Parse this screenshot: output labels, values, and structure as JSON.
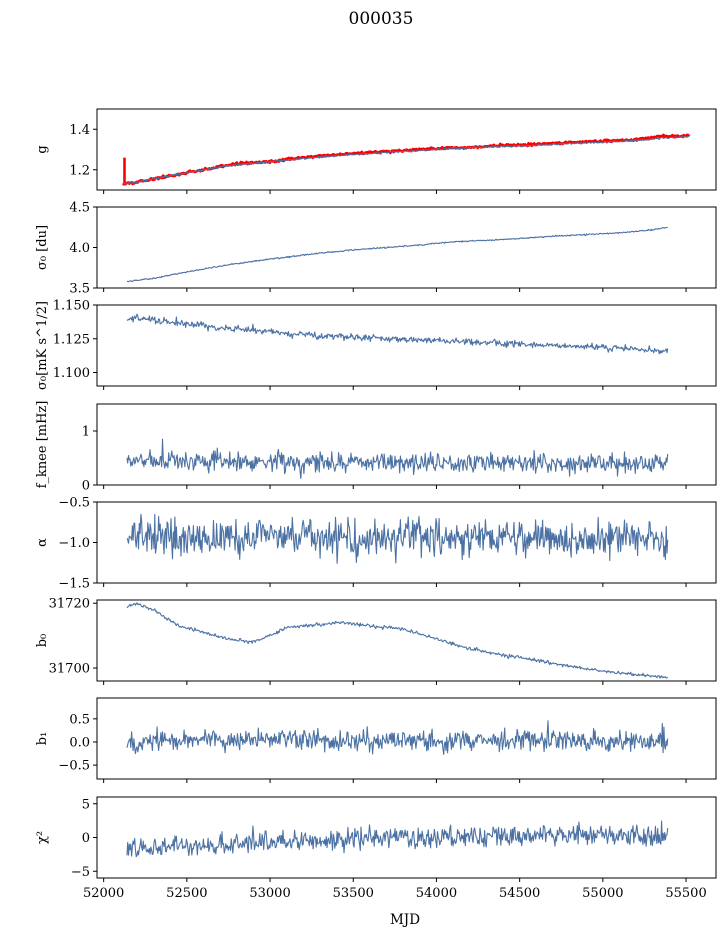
{
  "figure": {
    "title": "000035",
    "xlabel": "MJD",
    "xlim": [
      51960,
      55680
    ],
    "xticks": [
      52000,
      52500,
      53000,
      53500,
      54000,
      54500,
      55000,
      55500
    ],
    "line_color": "#4c72a4",
    "fit_color": "#ff0000"
  },
  "chart_data": [
    {
      "id": "g",
      "type": "line",
      "ylabel": "g",
      "ylim": [
        1.1,
        1.5
      ],
      "yticks": [
        {
          "v": 1.2,
          "t": "1.2"
        },
        {
          "v": 1.4,
          "t": "1.4"
        }
      ],
      "x_range": [
        52120,
        55520
      ],
      "series": [
        {
          "kind": "fit",
          "noise": 0.003,
          "spike": {
            "x": 52125,
            "from": 1.13,
            "to": 1.26
          },
          "points": [
            [
              52120,
              1.13
            ],
            [
              52200,
              1.14
            ],
            [
              52400,
              1.17
            ],
            [
              52600,
              1.2
            ],
            [
              52800,
              1.23
            ],
            [
              53000,
              1.24
            ],
            [
              53200,
              1.26
            ],
            [
              53400,
              1.275
            ],
            [
              53600,
              1.285
            ],
            [
              53800,
              1.295
            ],
            [
              54000,
              1.305
            ],
            [
              54200,
              1.31
            ],
            [
              54400,
              1.32
            ],
            [
              54600,
              1.325
            ],
            [
              54800,
              1.335
            ],
            [
              55000,
              1.34
            ],
            [
              55200,
              1.35
            ],
            [
              55350,
              1.365
            ],
            [
              55520,
              1.37
            ]
          ]
        },
        {
          "kind": "data",
          "noise": 0.002,
          "points": [
            [
              52120,
              1.13
            ],
            [
              52200,
              1.14
            ],
            [
              52400,
              1.17
            ],
            [
              52600,
              1.2
            ],
            [
              52800,
              1.225
            ],
            [
              53000,
              1.24
            ],
            [
              53200,
              1.255
            ],
            [
              53400,
              1.27
            ],
            [
              53600,
              1.28
            ],
            [
              53800,
              1.29
            ],
            [
              54000,
              1.3
            ],
            [
              54200,
              1.31
            ],
            [
              54400,
              1.315
            ],
            [
              54600,
              1.32
            ],
            [
              54800,
              1.33
            ],
            [
              55000,
              1.335
            ],
            [
              55200,
              1.345
            ],
            [
              55350,
              1.355
            ],
            [
              55520,
              1.365
            ]
          ]
        }
      ]
    },
    {
      "id": "sigma0_du",
      "type": "line",
      "ylabel": "σ₀ [du]",
      "ylim": [
        3.5,
        4.5
      ],
      "yticks": [
        {
          "v": 3.5,
          "t": "3.5"
        },
        {
          "v": 4.0,
          "t": "4.0"
        },
        {
          "v": 4.5,
          "t": "4.5"
        }
      ],
      "x_range": [
        52140,
        55390
      ],
      "series": [
        {
          "kind": "data",
          "noise": 0.004,
          "points": [
            [
              52140,
              3.58
            ],
            [
              52300,
              3.62
            ],
            [
              52500,
              3.7
            ],
            [
              52700,
              3.77
            ],
            [
              52900,
              3.83
            ],
            [
              53100,
              3.88
            ],
            [
              53300,
              3.93
            ],
            [
              53500,
              3.97
            ],
            [
              53700,
              4.0
            ],
            [
              53900,
              4.03
            ],
            [
              54100,
              4.07
            ],
            [
              54300,
              4.09
            ],
            [
              54500,
              4.11
            ],
            [
              54700,
              4.14
            ],
            [
              54900,
              4.16
            ],
            [
              55100,
              4.18
            ],
            [
              55300,
              4.22
            ],
            [
              55390,
              4.25
            ]
          ]
        }
      ]
    },
    {
      "id": "sigma0_mks",
      "type": "line",
      "ylabel": "σ₀[mK s^1/2]",
      "ylim": [
        1.09,
        1.15
      ],
      "yticks": [
        {
          "v": 1.1,
          "t": "1.100"
        },
        {
          "v": 1.125,
          "t": "1.125"
        },
        {
          "v": 1.15,
          "t": "1.150"
        }
      ],
      "x_range": [
        52140,
        55390
      ],
      "series": [
        {
          "kind": "data",
          "noise": 0.0012,
          "points": [
            [
              52140,
              1.141
            ],
            [
              52300,
              1.139
            ],
            [
              52500,
              1.136
            ],
            [
              52700,
              1.133
            ],
            [
              52900,
              1.131
            ],
            [
              53100,
              1.129
            ],
            [
              53300,
              1.127
            ],
            [
              53500,
              1.126
            ],
            [
              53700,
              1.125
            ],
            [
              53900,
              1.124
            ],
            [
              54100,
              1.123
            ],
            [
              54300,
              1.122
            ],
            [
              54500,
              1.121
            ],
            [
              54700,
              1.12
            ],
            [
              54900,
              1.119
            ],
            [
              55100,
              1.118
            ],
            [
              55300,
              1.117
            ],
            [
              55390,
              1.117
            ]
          ]
        }
      ]
    },
    {
      "id": "fknee",
      "type": "line",
      "ylabel": "f_knee [mHz]",
      "ylim": [
        0,
        1.5
      ],
      "yticks": [
        {
          "v": 0,
          "t": "0"
        },
        {
          "v": 1,
          "t": "1"
        }
      ],
      "x_range": [
        52140,
        55390
      ],
      "series": [
        {
          "kind": "data",
          "noise": 0.09,
          "seed": 7,
          "points": [
            [
              52140,
              0.45
            ],
            [
              55390,
              0.4
            ]
          ]
        }
      ]
    },
    {
      "id": "alpha",
      "type": "line",
      "ylabel": "α",
      "ylim": [
        -1.5,
        -0.5
      ],
      "yticks": [
        {
          "v": -1.5,
          "t": "−1.5"
        },
        {
          "v": -1.0,
          "t": "−1.0"
        },
        {
          "v": -0.5,
          "t": "−0.5"
        }
      ],
      "x_range": [
        52140,
        55390
      ],
      "series": [
        {
          "kind": "data",
          "noise": 0.11,
          "seed": 13,
          "points": [
            [
              52140,
              -0.93
            ],
            [
              55390,
              -0.95
            ]
          ]
        }
      ]
    },
    {
      "id": "b0",
      "type": "line",
      "ylabel": "b₀",
      "ylim": [
        31696,
        31721
      ],
      "yticks": [
        {
          "v": 31700,
          "t": "31700"
        },
        {
          "v": 31720,
          "t": "31720"
        }
      ],
      "x_range": [
        52140,
        55390
      ],
      "series": [
        {
          "kind": "data",
          "noise": 0.25,
          "seed": 21,
          "points": [
            [
              52140,
              31719
            ],
            [
              52200,
              31720
            ],
            [
              52300,
              31718
            ],
            [
              52450,
              31713
            ],
            [
              52600,
              31711
            ],
            [
              52750,
              31709
            ],
            [
              52900,
              31708
            ],
            [
              53000,
              31710
            ],
            [
              53100,
              31712.5
            ],
            [
              53300,
              31713.5
            ],
            [
              53450,
              31714
            ],
            [
              53600,
              31713
            ],
            [
              53800,
              31712
            ],
            [
              54000,
              31709
            ],
            [
              54200,
              31706
            ],
            [
              54400,
              31704
            ],
            [
              54600,
              31702.5
            ],
            [
              54800,
              31700.5
            ],
            [
              55000,
              31699
            ],
            [
              55200,
              31698
            ],
            [
              55390,
              31697
            ]
          ]
        }
      ]
    },
    {
      "id": "b1",
      "type": "line",
      "ylabel": "b₁",
      "ylim": [
        -0.8,
        0.95
      ],
      "yticks": [
        {
          "v": -0.5,
          "t": "−0.5"
        },
        {
          "v": 0,
          "t": "0.0"
        },
        {
          "v": 0.5,
          "t": "0.5"
        }
      ],
      "x_range": [
        52140,
        55390
      ],
      "series": [
        {
          "kind": "data",
          "noise": 0.11,
          "seed": 33,
          "points": [
            [
              52140,
              0.0
            ],
            [
              52900,
              0.06
            ],
            [
              53600,
              0.03
            ],
            [
              54500,
              0.03
            ],
            [
              55390,
              0.0
            ]
          ]
        }
      ]
    },
    {
      "id": "chi2",
      "type": "line",
      "ylabel": "χ²",
      "ylim": [
        -6,
        6
      ],
      "yticks": [
        {
          "v": -5,
          "t": "−5"
        },
        {
          "v": 0,
          "t": "0"
        },
        {
          "v": 5,
          "t": "5"
        }
      ],
      "x_range": [
        52140,
        55390
      ],
      "series": [
        {
          "kind": "data",
          "noise": 0.75,
          "seed": 47,
          "points": [
            [
              52140,
              -1.6
            ],
            [
              52700,
              -1.0
            ],
            [
              53300,
              -0.3
            ],
            [
              54200,
              0.2
            ],
            [
              55390,
              0.4
            ]
          ]
        }
      ]
    }
  ]
}
